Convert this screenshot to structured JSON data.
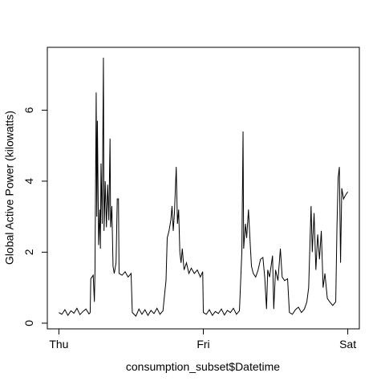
{
  "chart_data": {
    "type": "line",
    "x_label": "consumption_subset$Datetime",
    "y_label": "Global Active Power (kilowatts)",
    "color": "#000000",
    "xlim": [
      -1.92,
      49.92
    ],
    "ylim": [
      -0.16,
      7.77
    ],
    "xticks": [
      {
        "value": 0,
        "label": "Thu"
      },
      {
        "value": 24,
        "label": "Fri"
      },
      {
        "value": 48,
        "label": "Sat"
      }
    ],
    "yticks": [
      0,
      2,
      4,
      6
    ],
    "x": [
      0,
      0.5,
      1,
      1.5,
      2,
      2.5,
      3,
      3.5,
      4,
      4.5,
      5,
      5.2,
      5.3,
      5.7,
      5.9,
      6.0,
      6.2,
      6.3,
      6.4,
      6.6,
      6.8,
      6.9,
      7.0,
      7.2,
      7.4,
      7.5,
      7.7,
      7.9,
      8.1,
      8.3,
      8.5,
      8.6,
      8.8,
      9.0,
      9.2,
      9.5,
      9.7,
      9.9,
      10.0,
      10.5,
      11,
      11.5,
      12,
      12.2,
      12.8,
      13.3,
      13.8,
      14.3,
      14.8,
      15.3,
      15.8,
      16.3,
      16.8,
      17.3,
      17.5,
      17.8,
      18.0,
      18.3,
      18.6,
      18.8,
      19.0,
      19.2,
      19.5,
      19.7,
      19.9,
      20.1,
      20.3,
      20.5,
      20.8,
      21.2,
      21.6,
      22,
      22.5,
      23,
      23.5,
      23.9,
      24.0,
      24.5,
      25,
      25.5,
      26,
      26.5,
      27,
      27.5,
      28,
      28.5,
      29,
      29.5,
      30.0,
      30.4,
      30.6,
      30.7,
      31.0,
      31.2,
      31.5,
      31.8,
      32.0,
      32.3,
      32.7,
      33.1,
      33.5,
      33.9,
      34.2,
      34.5,
      34.7,
      35.0,
      35.5,
      35.7,
      36.0,
      36.4,
      36.8,
      37.1,
      37.5,
      38.0,
      38.3,
      38.8,
      39.3,
      39.8,
      40.3,
      40.8,
      41.2,
      41.5,
      41.9,
      42.1,
      42.4,
      42.7,
      43.0,
      43.3,
      43.6,
      43.9,
      44.2,
      44.6,
      45.0,
      45.5,
      46.0,
      46.2,
      46.4,
      46.6,
      46.8,
      47.0,
      47.3,
      47.6,
      48.0
    ],
    "values": [
      0.3,
      0.25,
      0.38,
      0.22,
      0.35,
      0.28,
      0.42,
      0.24,
      0.33,
      0.4,
      0.26,
      0.3,
      1.25,
      1.35,
      0.6,
      1.5,
      6.5,
      3.0,
      5.7,
      2.2,
      3.2,
      2.1,
      4.5,
      2.8,
      7.48,
      2.6,
      4.0,
      2.7,
      3.9,
      2.9,
      5.2,
      2.7,
      3.3,
      1.6,
      1.4,
      1.7,
      3.5,
      3.5,
      1.4,
      1.35,
      1.45,
      1.3,
      1.4,
      0.3,
      0.2,
      0.4,
      0.25,
      0.38,
      0.22,
      0.36,
      0.27,
      0.42,
      0.25,
      0.35,
      0.7,
      1.2,
      2.4,
      2.6,
      2.9,
      3.3,
      2.6,
      3.1,
      4.4,
      2.8,
      3.2,
      2.0,
      1.7,
      2.1,
      1.5,
      1.7,
      1.4,
      1.55,
      1.4,
      1.5,
      1.3,
      1.45,
      0.3,
      0.25,
      0.38,
      0.22,
      0.33,
      0.27,
      0.4,
      0.23,
      0.36,
      0.3,
      0.42,
      0.25,
      0.35,
      2.0,
      5.4,
      2.1,
      2.8,
      2.4,
      3.2,
      2.2,
      1.6,
      1.4,
      1.3,
      1.5,
      1.8,
      1.85,
      1.3,
      0.4,
      1.5,
      1.3,
      1.9,
      0.4,
      1.5,
      1.2,
      2.1,
      1.3,
      1.2,
      1.25,
      0.3,
      0.25,
      0.38,
      0.45,
      0.3,
      0.4,
      0.6,
      1.0,
      3.3,
      2.0,
      3.1,
      1.5,
      2.5,
      1.8,
      2.6,
      1.0,
      1.4,
      0.7,
      0.6,
      0.5,
      0.6,
      2.7,
      4.1,
      4.4,
      1.7,
      3.8,
      3.5,
      3.6,
      3.7
    ]
  }
}
